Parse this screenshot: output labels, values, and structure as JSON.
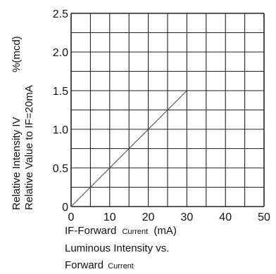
{
  "chart_data": {
    "type": "line",
    "title": "",
    "xlabel_parts": [
      "IF-Forward",
      "Current",
      "(mA)"
    ],
    "ylabel_line1": "Relative Intensity IV",
    "ylabel_unit": "%(mcd)",
    "ylabel_line2": "Relative Value to IF=20mA",
    "caption_line1": "Luminous Intensity vs.",
    "caption_line2_parts": [
      "Forward",
      "Current"
    ],
    "x_ticks": [
      "0",
      "10",
      "20",
      "30",
      "40",
      "50"
    ],
    "y_ticks": [
      "0",
      "0.5",
      "1.0",
      "1.5",
      "2.0",
      "2.5"
    ],
    "xlim": [
      0,
      50
    ],
    "ylim": [
      0,
      2.5
    ],
    "grid": true,
    "grid_x_step": 5,
    "grid_y_step": 0.25,
    "series": [
      {
        "x": [
          0,
          30
        ],
        "y": [
          0,
          1.5
        ]
      }
    ],
    "colors": {
      "grid": "#222222",
      "line": "#555555",
      "text": "#111111"
    }
  }
}
